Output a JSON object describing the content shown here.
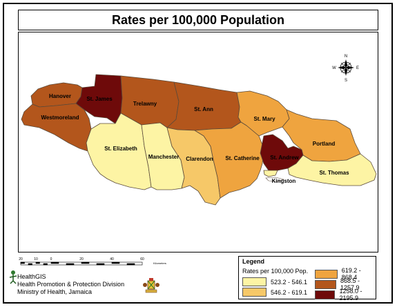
{
  "title": "Rates per 100,000 Population",
  "colors": {
    "c1": "#fdf4a4",
    "c2": "#f6c868",
    "c3": "#efa43f",
    "c4": "#b3561c",
    "c5": "#6e0a0a",
    "boundary": "#5a4a3a"
  },
  "parishes": {
    "hanover": {
      "label": "Hanover",
      "class": "c4"
    },
    "westmoreland": {
      "label": "Westmoreland",
      "class": "c4"
    },
    "st_james": {
      "label": "St. James",
      "class": "c5"
    },
    "trelawny": {
      "label": "Trelawny",
      "class": "c4"
    },
    "st_ann": {
      "label": "St. Ann",
      "class": "c4"
    },
    "st_mary": {
      "label": "St. Mary",
      "class": "c3"
    },
    "portland": {
      "label": "Portland",
      "class": "c3"
    },
    "st_elizabeth": {
      "label": "St. Elizabeth",
      "class": "c1"
    },
    "manchester": {
      "label": "Manchester",
      "class": "c1"
    },
    "clarendon": {
      "label": "Clarendon",
      "class": "c2"
    },
    "st_catherine": {
      "label": "St. Catherine",
      "class": "c3"
    },
    "st_andrew": {
      "label": "St. Andrew",
      "class": "c5"
    },
    "kingston": {
      "label": "Kingston",
      "class": "c1"
    },
    "st_thomas": {
      "label": "St. Thomas",
      "class": "c1"
    }
  },
  "legend": {
    "title": "Legend",
    "subtitle": "Rates per 100,000 Pop.",
    "items": [
      {
        "label": "523.2 - 546.1",
        "class": "c1"
      },
      {
        "label": "546.2 - 619.1",
        "class": "c2"
      },
      {
        "label": "619.2 - 868.4",
        "class": "c3"
      },
      {
        "label": "868.5 - 1257.9",
        "class": "c4"
      },
      {
        "label": "1258.0 - 2195.9",
        "class": "c5"
      }
    ]
  },
  "compass": {
    "n": "N",
    "s": "S",
    "e": "E",
    "w": "W"
  },
  "scale": {
    "ticks": [
      "20",
      "10",
      "0",
      "20",
      "40",
      "60"
    ],
    "unit": "Kilometers"
  },
  "credits": {
    "line1": "HealthGIS",
    "line2": "Health Promotion & Protection Division",
    "line3": "Ministry of Health, Jamaica"
  }
}
